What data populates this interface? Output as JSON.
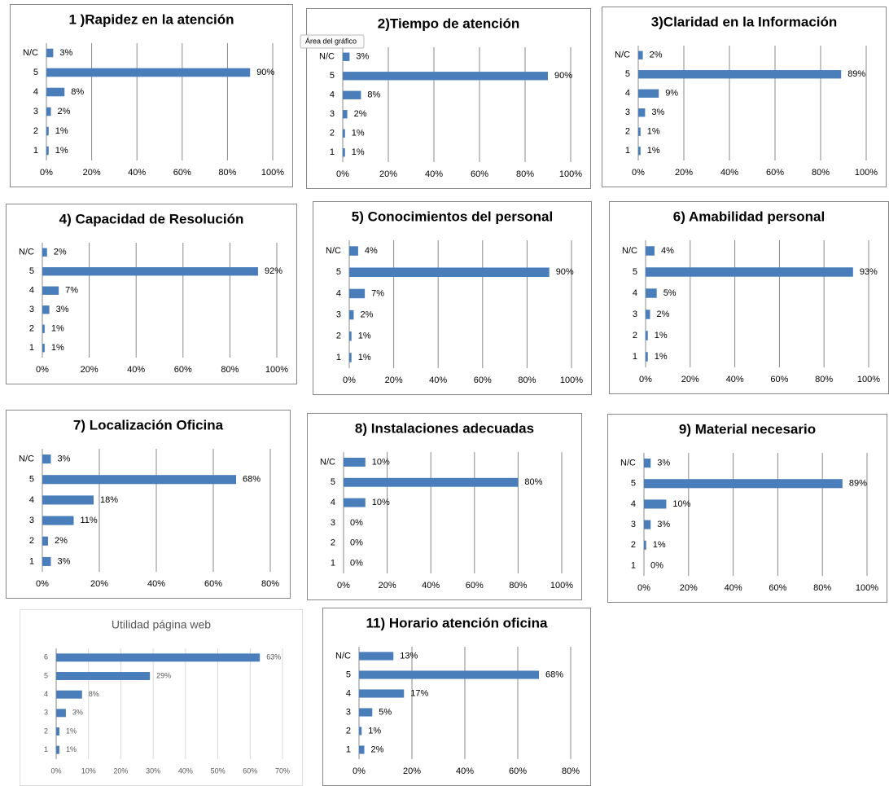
{
  "tooltip": "Área del gráfico",
  "chart_data": [
    {
      "type": "bar",
      "orientation": "horizontal",
      "title": "1 )Rapidez en la atención",
      "categories": [
        "N/C",
        "5",
        "4",
        "3",
        "2",
        "1"
      ],
      "values": [
        3,
        90,
        8,
        2,
        1,
        1
      ],
      "value_labels": [
        "3%",
        "90%",
        "8%",
        "2%",
        "1%",
        "1%"
      ],
      "color": "#4a7ebb",
      "xlim": [
        0,
        100
      ],
      "xticks": [
        {
          "value": 0,
          "label": "0%"
        },
        {
          "value": 20,
          "label": "20%"
        },
        {
          "value": 40,
          "label": "40%"
        },
        {
          "value": 60,
          "label": "60%"
        },
        {
          "value": 80,
          "label": "80%"
        },
        {
          "value": 100,
          "label": "100%"
        }
      ],
      "grid": true
    },
    {
      "type": "bar",
      "orientation": "horizontal",
      "title": "2)Tiempo de atención",
      "categories": [
        "N/C",
        "5",
        "4",
        "3",
        "2",
        "1"
      ],
      "values": [
        3,
        90,
        8,
        2,
        1,
        1
      ],
      "value_labels": [
        "3%",
        "90%",
        "8%",
        "2%",
        "1%",
        "1%"
      ],
      "color": "#4a7ebb",
      "xlim": [
        0,
        100
      ],
      "xticks": [
        {
          "value": 0,
          "label": "0%"
        },
        {
          "value": 20,
          "label": "20%"
        },
        {
          "value": 40,
          "label": "40%"
        },
        {
          "value": 60,
          "label": "60%"
        },
        {
          "value": 80,
          "label": "80%"
        },
        {
          "value": 100,
          "label": "100%"
        }
      ],
      "grid": true
    },
    {
      "type": "bar",
      "orientation": "horizontal",
      "title": "3)Claridad en la Información",
      "categories": [
        "N/C",
        "5",
        "4",
        "3",
        "2",
        "1"
      ],
      "values": [
        2,
        89,
        9,
        3,
        1,
        1
      ],
      "value_labels": [
        "2%",
        "89%",
        "9%",
        "3%",
        "1%",
        "1%"
      ],
      "color": "#4a7ebb",
      "xlim": [
        0,
        100
      ],
      "xticks": [
        {
          "value": 0,
          "label": "0%"
        },
        {
          "value": 20,
          "label": "20%"
        },
        {
          "value": 40,
          "label": "40%"
        },
        {
          "value": 60,
          "label": "60%"
        },
        {
          "value": 80,
          "label": "80%"
        },
        {
          "value": 100,
          "label": "100%"
        }
      ],
      "grid": true
    },
    {
      "type": "bar",
      "orientation": "horizontal",
      "title": "4) Capacidad de Resolución",
      "categories": [
        "N/C",
        "5",
        "4",
        "3",
        "2",
        "1"
      ],
      "values": [
        2,
        92,
        7,
        3,
        1,
        1
      ],
      "value_labels": [
        "2%",
        "92%",
        "7%",
        "3%",
        "1%",
        "1%"
      ],
      "color": "#4a7ebb",
      "xlim": [
        0,
        100
      ],
      "xticks": [
        {
          "value": 0,
          "label": "0%"
        },
        {
          "value": 20,
          "label": "20%"
        },
        {
          "value": 40,
          "label": "40%"
        },
        {
          "value": 60,
          "label": "60%"
        },
        {
          "value": 80,
          "label": "80%"
        },
        {
          "value": 100,
          "label": "100%"
        }
      ],
      "grid": true
    },
    {
      "type": "bar",
      "orientation": "horizontal",
      "title": "5) Conocimientos del personal",
      "categories": [
        "N/C",
        "5",
        "4",
        "3",
        "2",
        "1"
      ],
      "values": [
        4,
        90,
        7,
        2,
        1,
        1
      ],
      "value_labels": [
        "4%",
        "90%",
        "7%",
        "2%",
        "1%",
        "1%"
      ],
      "color": "#4a7ebb",
      "xlim": [
        0,
        100
      ],
      "xticks": [
        {
          "value": 0,
          "label": "0%"
        },
        {
          "value": 20,
          "label": "20%"
        },
        {
          "value": 40,
          "label": "40%"
        },
        {
          "value": 60,
          "label": "60%"
        },
        {
          "value": 80,
          "label": "80%"
        },
        {
          "value": 100,
          "label": "100%"
        }
      ],
      "grid": true
    },
    {
      "type": "bar",
      "orientation": "horizontal",
      "title": "6)  Amabilidad personal",
      "categories": [
        "N/C",
        "5",
        "4",
        "3",
        "2",
        "1"
      ],
      "values": [
        4,
        93,
        5,
        2,
        1,
        1
      ],
      "value_labels": [
        "4%",
        "93%",
        "5%",
        "2%",
        "1%",
        "1%"
      ],
      "color": "#4a7ebb",
      "xlim": [
        0,
        100
      ],
      "xticks": [
        {
          "value": 0,
          "label": "0%"
        },
        {
          "value": 20,
          "label": "20%"
        },
        {
          "value": 40,
          "label": "40%"
        },
        {
          "value": 60,
          "label": "60%"
        },
        {
          "value": 80,
          "label": "80%"
        },
        {
          "value": 100,
          "label": "100%"
        }
      ],
      "grid": true
    },
    {
      "type": "bar",
      "orientation": "horizontal",
      "title": "7) Localización Oficina",
      "categories": [
        "N/C",
        "5",
        "4",
        "3",
        "2",
        "1"
      ],
      "values": [
        3,
        68,
        18,
        11,
        2,
        3
      ],
      "value_labels": [
        "3%",
        "68%",
        "18%",
        "11%",
        "2%",
        "3%"
      ],
      "color": "#4a7ebb",
      "xlim": [
        0,
        80
      ],
      "xticks": [
        {
          "value": 0,
          "label": "0%"
        },
        {
          "value": 20,
          "label": "20%"
        },
        {
          "value": 40,
          "label": "40%"
        },
        {
          "value": 60,
          "label": "60%"
        },
        {
          "value": 80,
          "label": "80%"
        }
      ],
      "grid": true
    },
    {
      "type": "bar",
      "orientation": "horizontal",
      "title": "8) Instalaciones adecuadas",
      "categories": [
        "N/C",
        "5",
        "4",
        "3",
        "2",
        "1"
      ],
      "values": [
        10,
        80,
        10,
        0,
        0,
        0
      ],
      "value_labels": [
        "10%",
        "80%",
        "10%",
        "0%",
        "0%",
        "0%"
      ],
      "color": "#4a7ebb",
      "xlim": [
        0,
        100
      ],
      "xticks": [
        {
          "value": 0,
          "label": "0%"
        },
        {
          "value": 20,
          "label": "20%"
        },
        {
          "value": 40,
          "label": "40%"
        },
        {
          "value": 60,
          "label": "60%"
        },
        {
          "value": 80,
          "label": "80%"
        },
        {
          "value": 100,
          "label": "100%"
        }
      ],
      "grid": true
    },
    {
      "type": "bar",
      "orientation": "horizontal",
      "title": "9) Material necesario",
      "categories": [
        "N/C",
        "5",
        "4",
        "3",
        "2",
        "1"
      ],
      "values": [
        3,
        89,
        10,
        3,
        1,
        0
      ],
      "value_labels": [
        "3%",
        "89%",
        "10%",
        "3%",
        "1%",
        "0%"
      ],
      "color": "#4a7ebb",
      "xlim": [
        0,
        100
      ],
      "xticks": [
        {
          "value": 0,
          "label": "0%"
        },
        {
          "value": 20,
          "label": "20%"
        },
        {
          "value": 40,
          "label": "40%"
        },
        {
          "value": 60,
          "label": "60%"
        },
        {
          "value": 80,
          "label": "80%"
        },
        {
          "value": 100,
          "label": "100%"
        }
      ],
      "grid": true
    },
    {
      "type": "bar",
      "orientation": "horizontal",
      "title": "Utilidad página web",
      "categories": [
        "6",
        "5",
        "4",
        "3",
        "2",
        "1"
      ],
      "values": [
        63,
        29,
        8,
        3,
        1,
        1
      ],
      "value_labels": [
        "63%",
        "29%",
        "8%",
        "3%",
        "1%",
        "1%"
      ],
      "color": "#4a7ebb",
      "xlim": [
        0,
        70
      ],
      "xticks": [
        {
          "value": 0,
          "label": "0%"
        },
        {
          "value": 10,
          "label": "10%"
        },
        {
          "value": 20,
          "label": "20%"
        },
        {
          "value": 30,
          "label": "30%"
        },
        {
          "value": 40,
          "label": "40%"
        },
        {
          "value": 50,
          "label": "50%"
        },
        {
          "value": 60,
          "label": "60%"
        },
        {
          "value": 70,
          "label": "70%"
        }
      ],
      "grid": true
    },
    {
      "type": "bar",
      "orientation": "horizontal",
      "title": "11) Horario atención oficina",
      "categories": [
        "N/C",
        "5",
        "4",
        "3",
        "2",
        "1"
      ],
      "values": [
        13,
        68,
        17,
        5,
        1,
        2
      ],
      "value_labels": [
        "13%",
        "68%",
        "17%",
        "5%",
        "1%",
        "2%"
      ],
      "color": "#4a7ebb",
      "xlim": [
        0,
        80
      ],
      "xticks": [
        {
          "value": 0,
          "label": "0%"
        },
        {
          "value": 20,
          "label": "20%"
        },
        {
          "value": 40,
          "label": "40%"
        },
        {
          "value": 60,
          "label": "60%"
        },
        {
          "value": 80,
          "label": "80%"
        }
      ],
      "grid": true
    }
  ]
}
